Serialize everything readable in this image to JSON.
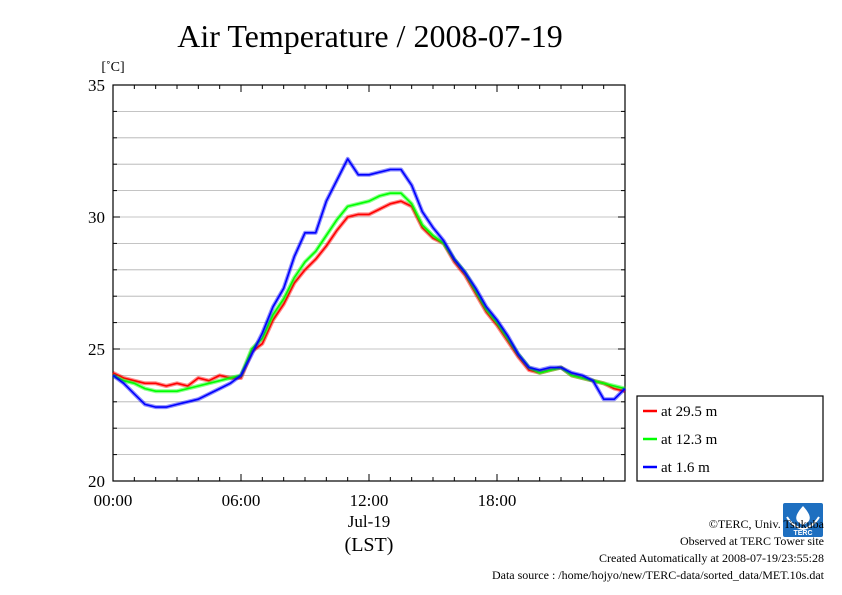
{
  "chart_data": {
    "type": "line",
    "title": "Air Temperature / 2008-07-19",
    "ylabel": "[˚C]",
    "xlabel": "(LST)",
    "date_label": "Jul-19",
    "xlim": [
      0,
      24
    ],
    "ylim": [
      20,
      35
    ],
    "x_ticks": [
      {
        "value": 0,
        "label": "00:00"
      },
      {
        "value": 6,
        "label": "06:00"
      },
      {
        "value": 12,
        "label": "12:00"
      },
      {
        "value": 18,
        "label": "18:00"
      }
    ],
    "y_ticks": [
      {
        "value": 20,
        "label": "20"
      },
      {
        "value": 25,
        "label": "25"
      },
      {
        "value": 30,
        "label": "30"
      },
      {
        "value": 35,
        "label": "35"
      }
    ],
    "grid": true,
    "legend_position": "right",
    "x": [
      0,
      0.5,
      1,
      1.5,
      2,
      2.5,
      3,
      3.5,
      4,
      4.5,
      5,
      5.5,
      6,
      6.5,
      7,
      7.5,
      8,
      8.5,
      9,
      9.5,
      10,
      10.5,
      11,
      11.5,
      12,
      12.5,
      13,
      13.5,
      14,
      14.5,
      15,
      15.5,
      16,
      16.5,
      17,
      17.5,
      18,
      18.5,
      19,
      19.5,
      20,
      20.5,
      21,
      21.5,
      22,
      22.5,
      23,
      23.5,
      24
    ],
    "series": [
      {
        "name": "at 29.5 m",
        "color": "#ff0000",
        "values": [
          24.1,
          23.9,
          23.8,
          23.7,
          23.7,
          23.6,
          23.7,
          23.6,
          23.9,
          23.8,
          24.0,
          23.9,
          23.9,
          24.9,
          25.2,
          26.1,
          26.7,
          27.5,
          28.0,
          28.4,
          28.9,
          29.5,
          30.0,
          30.1,
          30.1,
          30.3,
          30.5,
          30.6,
          30.4,
          29.6,
          29.2,
          29.0,
          28.3,
          27.8,
          27.1,
          26.4,
          25.9,
          25.3,
          24.7,
          24.2,
          24.1,
          24.2,
          24.3,
          24.0,
          23.9,
          23.8,
          23.7,
          23.5,
          23.4
        ]
      },
      {
        "name": "at 12.3 m",
        "color": "#00ff00",
        "values": [
          24.0,
          23.8,
          23.7,
          23.5,
          23.4,
          23.4,
          23.4,
          23.5,
          23.6,
          23.7,
          23.8,
          23.9,
          24.0,
          25.0,
          25.4,
          26.3,
          26.9,
          27.7,
          28.3,
          28.7,
          29.3,
          29.9,
          30.4,
          30.5,
          30.6,
          30.8,
          30.9,
          30.9,
          30.5,
          29.7,
          29.3,
          29.0,
          28.4,
          27.9,
          27.2,
          26.5,
          26.0,
          25.4,
          24.8,
          24.3,
          24.1,
          24.2,
          24.3,
          24.0,
          23.9,
          23.8,
          23.7,
          23.6,
          23.5
        ]
      },
      {
        "name": "at 1.6 m",
        "color": "#0000ff",
        "values": [
          24.0,
          23.7,
          23.3,
          22.9,
          22.8,
          22.8,
          22.9,
          23.0,
          23.1,
          23.3,
          23.5,
          23.7,
          24.0,
          24.8,
          25.6,
          26.6,
          27.3,
          28.5,
          29.4,
          29.4,
          30.6,
          31.4,
          32.2,
          31.6,
          31.6,
          31.7,
          31.8,
          31.8,
          31.2,
          30.2,
          29.6,
          29.1,
          28.4,
          27.9,
          27.3,
          26.6,
          26.1,
          25.5,
          24.8,
          24.3,
          24.2,
          24.3,
          24.3,
          24.1,
          24.0,
          23.8,
          23.1,
          23.1,
          23.5
        ]
      }
    ]
  },
  "footer": {
    "copyright": "©TERC, Univ. Tsukuba",
    "observed": "Observed at TERC Tower site",
    "created": "Created Automatically at 2008-07-19/23:55:28",
    "source": "Data source : /home/hojyo/new/TERC-data/sorted_data/MET.10s.dat"
  },
  "logo": {
    "text": "TERC",
    "color": "#1e6fc0"
  }
}
